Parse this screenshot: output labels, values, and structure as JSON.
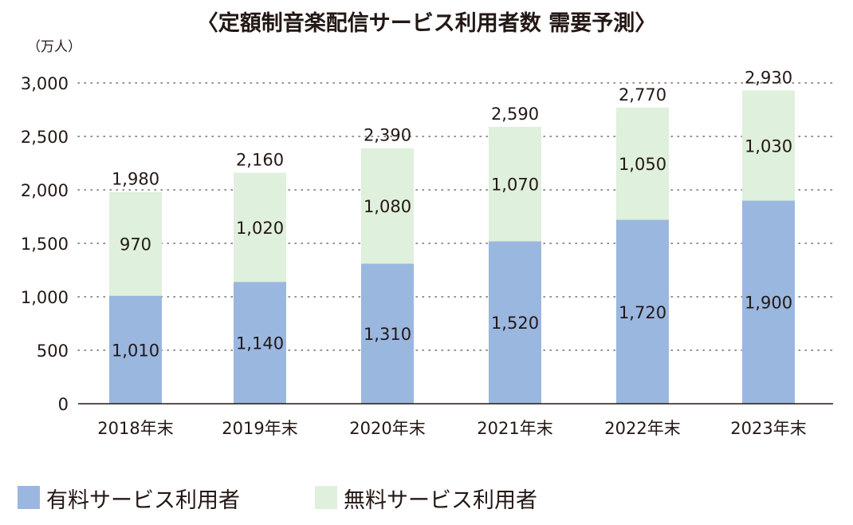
{
  "chart_data": {
    "type": "bar",
    "stacked": true,
    "title": "〈定額制音楽配信サービス利用者数 需要予測〉",
    "unit_label": "（万人）",
    "categories": [
      "2018年末",
      "2019年末",
      "2020年末",
      "2021年末",
      "2022年末",
      "2023年末"
    ],
    "series": [
      {
        "name": "有料サービス利用者",
        "values": [
          1010,
          1140,
          1310,
          1520,
          1720,
          1900
        ],
        "color": "#9ab7e0"
      },
      {
        "name": "無料サービス利用者",
        "values": [
          970,
          1020,
          1080,
          1070,
          1050,
          1030
        ],
        "color": "#dff0dc"
      }
    ],
    "totals": [
      1980,
      2160,
      2390,
      2590,
      2770,
      2930
    ],
    "segment_labels": [
      [
        "1,010",
        "1,140",
        "1,310",
        "1,520",
        "1,720",
        "1,900"
      ],
      [
        "970",
        "1,020",
        "1,080",
        "1,070",
        "1,050",
        "1,030"
      ]
    ],
    "total_labels": [
      "1,980",
      "2,160",
      "2,390",
      "2,590",
      "2,770",
      "2,930"
    ],
    "yticks": [
      0,
      500,
      1000,
      1500,
      2000,
      2500,
      3000
    ],
    "ytick_labels": [
      "0",
      "500",
      "1,000",
      "1,500",
      "2,000",
      "2,500",
      "3,000"
    ],
    "ylim": [
      0,
      3000
    ],
    "grid": "dotted horizontal",
    "legend_position": "bottom-left"
  }
}
